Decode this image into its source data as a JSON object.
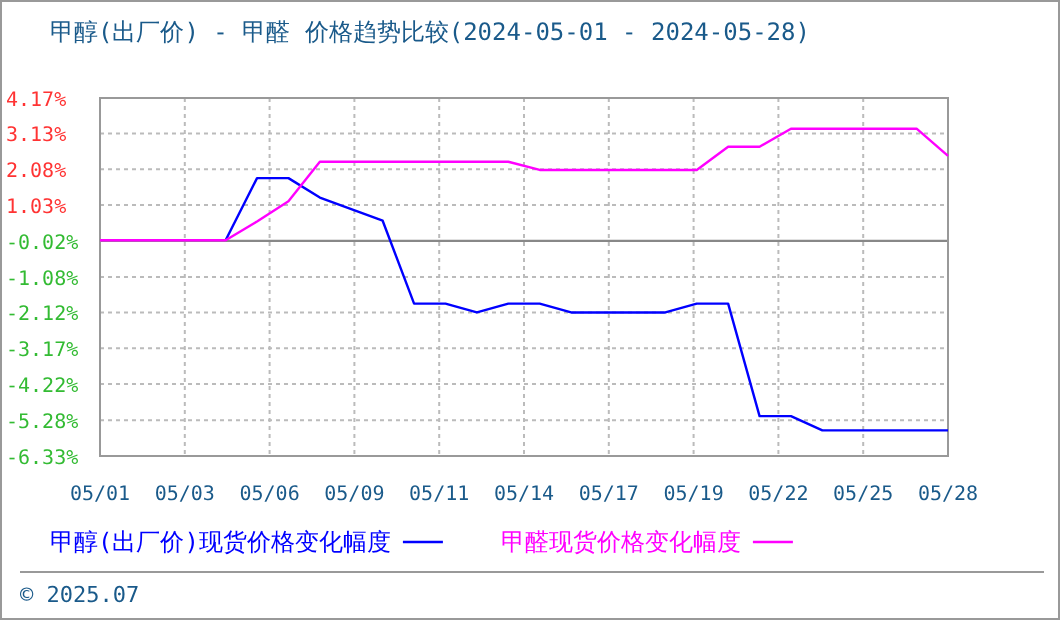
{
  "chart_data": {
    "type": "line",
    "title": "甲醇(出厂价) - 甲醛 价格趋势比较(2024-05-01 - 2024-05-28)",
    "x": [
      "2024-05-01",
      "2024-05-02",
      "2024-05-03",
      "2024-05-04",
      "2024-05-05",
      "2024-05-06",
      "2024-05-07",
      "2024-05-08",
      "2024-05-09",
      "2024-05-10",
      "2024-05-11",
      "2024-05-12",
      "2024-05-13",
      "2024-05-14",
      "2024-05-15",
      "2024-05-16",
      "2024-05-17",
      "2024-05-18",
      "2024-05-19",
      "2024-05-20",
      "2024-05-21",
      "2024-05-22",
      "2024-05-23",
      "2024-05-24",
      "2024-05-25",
      "2024-05-26",
      "2024-05-27",
      "2024-05-28"
    ],
    "series": [
      {
        "name": "甲醇(出厂价)现货价格变化幅度",
        "color": "#0000ff",
        "values": [
          null,
          null,
          null,
          null,
          0,
          1.82,
          1.82,
          1.25,
          0.91,
          0.57,
          -1.86,
          -1.86,
          -2.12,
          -1.86,
          -1.86,
          -2.12,
          -2.12,
          -2.12,
          -2.12,
          -1.86,
          -1.86,
          -5.16,
          -5.16,
          -5.58,
          -5.58,
          -5.58,
          -5.58,
          -5.58
        ]
      },
      {
        "name": "甲醛现货价格变化幅度",
        "color": "#ff00ff",
        "values": [
          0,
          0,
          0,
          0,
          0,
          0.55,
          1.14,
          2.3,
          2.3,
          2.3,
          2.3,
          2.3,
          2.3,
          2.3,
          2.06,
          2.06,
          2.06,
          2.06,
          2.06,
          2.06,
          2.74,
          2.74,
          3.27,
          3.27,
          3.27,
          3.27,
          3.27,
          2.47
        ]
      }
    ],
    "xlim": [
      "2024-05-01",
      "2024-05-28"
    ],
    "xticks": [
      {
        "value": "2024-05-01T00:00",
        "label": "05/01"
      },
      {
        "value": "2024-05-03T16:48",
        "label": "05/03"
      },
      {
        "value": "2024-05-06T09:36",
        "label": "05/06"
      },
      {
        "value": "2024-05-09T02:24",
        "label": "05/09"
      },
      {
        "value": "2024-05-11T19:12",
        "label": "05/11"
      },
      {
        "value": "2024-05-14T12:00",
        "label": "05/14"
      },
      {
        "value": "2024-05-17T04:48",
        "label": "05/17"
      },
      {
        "value": "2024-05-19T21:36",
        "label": "05/19"
      },
      {
        "value": "2024-05-22T14:24",
        "label": "05/22"
      },
      {
        "value": "2024-05-25T07:12",
        "label": "05/25"
      },
      {
        "value": "2024-05-28T00:00",
        "label": "05/28"
      }
    ],
    "ylim": [
      -6.33,
      4.17
    ],
    "yticks": [
      {
        "value": 4.17,
        "label": "4.17%"
      },
      {
        "value": 3.13,
        "label": "3.13%"
      },
      {
        "value": 2.08,
        "label": "2.08%"
      },
      {
        "value": 1.03,
        "label": "1.03%"
      },
      {
        "value": -0.02,
        "label": "-0.02%"
      },
      {
        "value": -1.08,
        "label": "-1.08%"
      },
      {
        "value": -2.12,
        "label": "-2.12%"
      },
      {
        "value": -3.17,
        "label": "-3.17%"
      },
      {
        "value": -4.22,
        "label": "-4.22%"
      },
      {
        "value": -5.28,
        "label": "-5.28%"
      },
      {
        "value": -6.33,
        "label": "-6.33%"
      }
    ],
    "grid": true,
    "legend": "bottom",
    "marker": "none",
    "line_style": "solid",
    "annotations": [
      "© 2025.07"
    ]
  }
}
